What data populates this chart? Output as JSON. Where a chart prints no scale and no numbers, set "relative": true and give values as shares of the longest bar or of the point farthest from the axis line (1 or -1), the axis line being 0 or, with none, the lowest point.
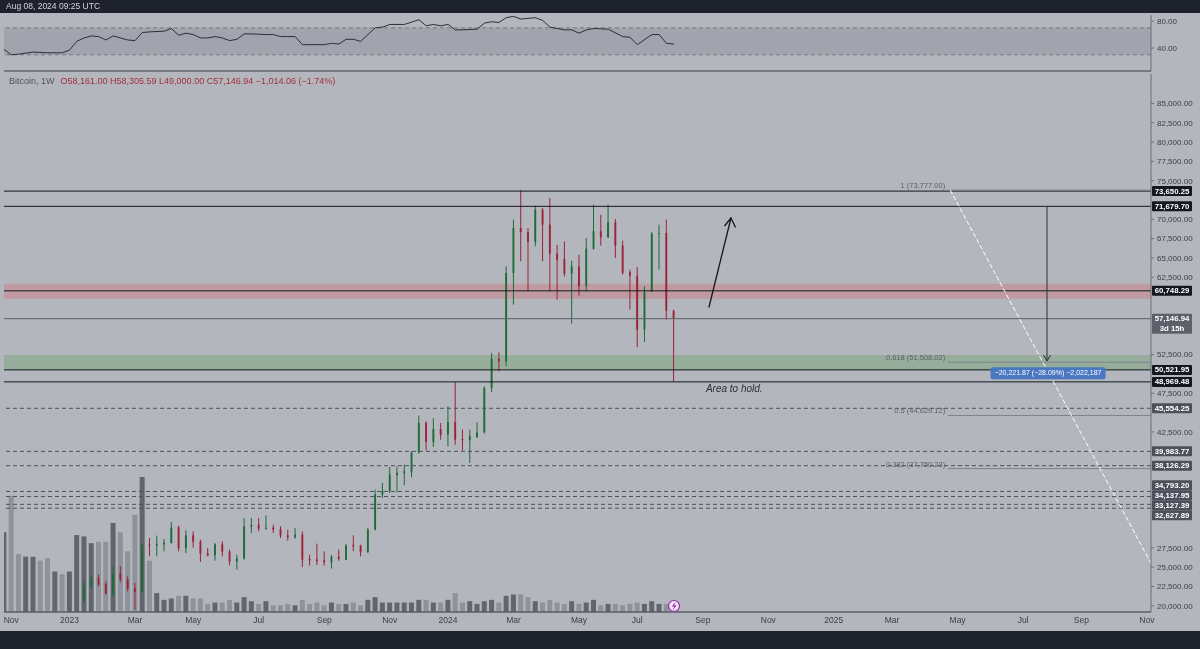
{
  "chart_data": [
    {
      "type": "line",
      "x": [
        "2022-10-31",
        "2022-11-07",
        "2022-11-14",
        "2022-11-28",
        "2022-12-12",
        "2022-12-26",
        "2023-01-02",
        "2023-01-09",
        "2023-01-16",
        "2023-01-23",
        "2023-01-30",
        "2023-02-06",
        "2023-02-13",
        "2023-02-20",
        "2023-02-27",
        "2023-03-06",
        "2023-03-13",
        "2023-03-20",
        "2023-04-03",
        "2023-04-10",
        "2023-04-17",
        "2023-04-24",
        "2023-05-01",
        "2023-05-08",
        "2023-05-15",
        "2023-05-22",
        "2023-05-29",
        "2023-06-05",
        "2023-06-12",
        "2023-06-19",
        "2023-06-26",
        "2023-07-10",
        "2023-07-17",
        "2023-07-24",
        "2023-07-31",
        "2023-08-07",
        "2023-08-14",
        "2023-08-21",
        "2023-09-04",
        "2023-09-11",
        "2023-09-18",
        "2023-09-25",
        "2023-10-02",
        "2023-10-09",
        "2023-10-23",
        "2023-10-30",
        "2023-11-06",
        "2023-11-20",
        "2023-12-04",
        "2023-12-11",
        "2023-12-18",
        "2023-12-25",
        "2024-01-01",
        "2024-01-08",
        "2024-01-15",
        "2024-01-29",
        "2024-02-05",
        "2024-02-12",
        "2024-02-19",
        "2024-02-26",
        "2024-03-04",
        "2024-03-11",
        "2024-03-25",
        "2024-04-01",
        "2024-04-08",
        "2024-04-22",
        "2024-04-29",
        "2024-05-06",
        "2024-05-13",
        "2024-05-20",
        "2024-06-03",
        "2024-06-17",
        "2024-06-24",
        "2024-07-01",
        "2024-07-15",
        "2024-07-22",
        "2024-07-29",
        "2024-08-05"
      ],
      "values": [
        38,
        30,
        31,
        34,
        33,
        33,
        37,
        50,
        55,
        58,
        57,
        52,
        58,
        55,
        52,
        51,
        63,
        64,
        65,
        69,
        59,
        62,
        60,
        55,
        55,
        57,
        55,
        51,
        53,
        61,
        61,
        60,
        60,
        57,
        57,
        57,
        45,
        45,
        45,
        47,
        46,
        53,
        53,
        50,
        70,
        71,
        75,
        75,
        82,
        73,
        75,
        73,
        75,
        67,
        67,
        68,
        77,
        79,
        78,
        85,
        87,
        83,
        85,
        81,
        71,
        67,
        67,
        62,
        67,
        69,
        68,
        57,
        56,
        45,
        60,
        60,
        47,
        46
      ],
      "color": "#2b2f3a",
      "xlim": [
        "2022-10-31",
        "2025-11-07"
      ],
      "ylim": [
        6,
        89
      ],
      "yticks": [
        {
          "value": 80,
          "label": "80.00"
        },
        {
          "value": 40,
          "label": "40.00"
        }
      ],
      "bands": [
        {
          "axis": "y",
          "from": 30,
          "to": 70,
          "color": "#9a9da6"
        }
      ],
      "ref_lines": [
        {
          "axis": "y",
          "value": 70,
          "color": "#767983",
          "line_style": "dashed"
        },
        {
          "axis": "y",
          "value": 30,
          "color": "#767983",
          "line_style": "dashed"
        }
      ],
      "tick_labels": "y",
      "annotations": [
        "Aug 08, 2024 09:25 UTC"
      ]
    },
    {
      "type": "candlestick",
      "title": "Bitcoin, 1W",
      "subtitle": "O58,161.00 H58,305.59 L49,000.00 C57,146.94 −1,014.06 (−1.74%)",
      "x": [
        "2023-01-16",
        "2023-01-23",
        "2023-01-30",
        "2023-02-06",
        "2023-02-13",
        "2023-02-20",
        "2023-02-27",
        "2023-03-06",
        "2023-03-13",
        "2023-03-20",
        "2023-03-27",
        "2023-04-03",
        "2023-04-10",
        "2023-04-17",
        "2023-04-24",
        "2023-05-01",
        "2023-05-08",
        "2023-05-15",
        "2023-05-22",
        "2023-05-29",
        "2023-06-05",
        "2023-06-12",
        "2023-06-19",
        "2023-06-26",
        "2023-07-03",
        "2023-07-10",
        "2023-07-17",
        "2023-07-24",
        "2023-07-31",
        "2023-08-07",
        "2023-08-14",
        "2023-08-21",
        "2023-08-28",
        "2023-09-04",
        "2023-09-11",
        "2023-09-18",
        "2023-09-25",
        "2023-10-02",
        "2023-10-09",
        "2023-10-16",
        "2023-10-23",
        "2023-10-30",
        "2023-11-06",
        "2023-11-13",
        "2023-11-20",
        "2023-11-27",
        "2023-12-04",
        "2023-12-11",
        "2023-12-18",
        "2023-12-25",
        "2024-01-01",
        "2024-01-08",
        "2024-01-15",
        "2024-01-22",
        "2024-01-29",
        "2024-02-05",
        "2024-02-12",
        "2024-02-19",
        "2024-02-26",
        "2024-03-04",
        "2024-03-11",
        "2024-03-18",
        "2024-03-25",
        "2024-04-01",
        "2024-04-08",
        "2024-04-15",
        "2024-04-22",
        "2024-04-29",
        "2024-05-06",
        "2024-05-13",
        "2024-05-20",
        "2024-05-27",
        "2024-06-03",
        "2024-06-10",
        "2024-06-17",
        "2024-06-24",
        "2024-07-01",
        "2024-07-08",
        "2024-07-15",
        "2024-07-22",
        "2024-07-29",
        "2024-08-05"
      ],
      "ohlc": [
        [
          20670,
          23170,
          20370,
          22610
        ],
        [
          22520,
          23900,
          22310,
          23600
        ],
        [
          23600,
          24030,
          22520,
          22740
        ],
        [
          22820,
          23170,
          21440,
          21570
        ],
        [
          21570,
          25110,
          21230,
          24070
        ],
        [
          24120,
          25110,
          23040,
          23380
        ],
        [
          23380,
          23810,
          21870,
          22220
        ],
        [
          22310,
          22950,
          19500,
          21790
        ],
        [
          21790,
          28000,
          21660,
          27820
        ],
        [
          27910,
          28770,
          26400,
          27780
        ],
        [
          27820,
          29080,
          26400,
          28040
        ],
        [
          27950,
          28640,
          27050,
          28170
        ],
        [
          28130,
          30840,
          28040,
          30110
        ],
        [
          30150,
          30370,
          27050,
          27440
        ],
        [
          27440,
          29770,
          26830,
          29120
        ],
        [
          29120,
          29640,
          27520,
          28300
        ],
        [
          28300,
          28560,
          25670,
          26750
        ],
        [
          26790,
          27480,
          26400,
          26530
        ],
        [
          26530,
          28130,
          25840,
          27950
        ],
        [
          27950,
          28340,
          26400,
          27010
        ],
        [
          27010,
          27260,
          25240,
          25710
        ],
        [
          25710,
          26620,
          24680,
          26140
        ],
        [
          26100,
          31360,
          25970,
          30280
        ],
        [
          30240,
          31360,
          29420,
          30460
        ],
        [
          30500,
          31360,
          29640,
          29980
        ],
        [
          29980,
          31710,
          29850,
          30110
        ],
        [
          30110,
          30500,
          29420,
          29850
        ],
        [
          29940,
          30280,
          28770,
          29080
        ],
        [
          29120,
          29850,
          28430,
          28860
        ],
        [
          28860,
          30070,
          28690,
          29210
        ],
        [
          29210,
          29640,
          25020,
          25970
        ],
        [
          26060,
          26620,
          25200,
          25890
        ],
        [
          26010,
          28040,
          25280,
          25760
        ],
        [
          25890,
          27050,
          25200,
          25630
        ],
        [
          25630,
          26580,
          24810,
          26360
        ],
        [
          26360,
          27270,
          25840,
          26060
        ],
        [
          25970,
          28000,
          25890,
          27780
        ],
        [
          27870,
          29120,
          27050,
          27700
        ],
        [
          27780,
          27910,
          26400,
          26960
        ],
        [
          26960,
          30070,
          26830,
          29850
        ],
        [
          29850,
          35030,
          29770,
          34420
        ],
        [
          34380,
          35890,
          33950,
          34900
        ],
        [
          34850,
          37960,
          34600,
          36970
        ],
        [
          36920,
          38050,
          34680,
          37230
        ],
        [
          37140,
          38260,
          35590,
          37400
        ],
        [
          37270,
          39990,
          36620,
          39860
        ],
        [
          39860,
          44600,
          39680,
          43650
        ],
        [
          43650,
          43870,
          40110,
          41190
        ],
        [
          41190,
          44300,
          40550,
          42870
        ],
        [
          42870,
          43650,
          41490,
          42140
        ],
        [
          42140,
          45810,
          40630,
          43780
        ],
        [
          43780,
          48970,
          40850,
          41490
        ],
        [
          41580,
          42790,
          40110,
          41410
        ],
        [
          41410,
          42790,
          38480,
          41930
        ],
        [
          41840,
          43740,
          41710,
          42440
        ],
        [
          42440,
          48390,
          42270,
          48180
        ],
        [
          48180,
          52710,
          47660,
          51970
        ],
        [
          51970,
          52790,
          50340,
          51630
        ],
        [
          51630,
          63920,
          50980,
          63060
        ],
        [
          63060,
          69960,
          58960,
          68880
        ],
        [
          68880,
          73780,
          64570,
          68360
        ],
        [
          68360,
          68880,
          60680,
          67070
        ],
        [
          67070,
          71770,
          66510,
          71250
        ],
        [
          71250,
          71460,
          64570,
          69310
        ],
        [
          69310,
          72760,
          60680,
          65560
        ],
        [
          65560,
          66720,
          59610,
          64780
        ],
        [
          64870,
          67150,
          62620,
          62970
        ],
        [
          62970,
          64650,
          56500,
          63920
        ],
        [
          63920,
          65430,
          60120,
          61330
        ],
        [
          61330,
          67580,
          60680,
          66200
        ],
        [
          66200,
          71900,
          66070,
          68450
        ],
        [
          68450,
          70600,
          66590,
          67670
        ],
        [
          67670,
          71900,
          67580,
          69610
        ],
        [
          69610,
          70040,
          65000,
          66590
        ],
        [
          66590,
          67240,
          62840,
          63060
        ],
        [
          63140,
          63490,
          58310,
          62710
        ],
        [
          62710,
          63830,
          53440,
          55730
        ],
        [
          55730,
          61330,
          54130,
          60640
        ],
        [
          60640,
          68360,
          60640,
          68140
        ],
        [
          68100,
          69310,
          63490,
          68230
        ],
        [
          68230,
          69960,
          57020,
          58161
        ],
        [
          58161,
          58305.59,
          49000,
          57146.94
        ]
      ],
      "colors": [
        "#1f6b35",
        "#1f6b35",
        "#9b2335",
        "#9b2335",
        "#1f6b35",
        "#9b2335",
        "#9b2335",
        "#9b2335",
        "#1f6b35",
        "#9b2335",
        "#1f6b35",
        "#1f6b35",
        "#1f6b35",
        "#9b2335",
        "#1f6b35",
        "#9b2335",
        "#9b2335",
        "#9b2335",
        "#1f6b35",
        "#9b2335",
        "#9b2335",
        "#1f6b35",
        "#1f6b35",
        "#1f6b35",
        "#9b2335",
        "#1f6b35",
        "#9b2335",
        "#9b2335",
        "#9b2335",
        "#1f6b35",
        "#9b2335",
        "#9b2335",
        "#9b2335",
        "#9b2335",
        "#1f6b35",
        "#9b2335",
        "#1f6b35",
        "#9b2335",
        "#9b2335",
        "#1f6b35",
        "#1f6b35",
        "#1f6b35",
        "#1f6b35",
        "#1f6b35",
        "#1f6b35",
        "#1f6b35",
        "#1f6b35",
        "#9b2335",
        "#1f6b35",
        "#9b2335",
        "#1f6b35",
        "#9b2335",
        "#9b2335",
        "#1f6b35",
        "#1f6b35",
        "#1f6b35",
        "#1f6b35",
        "#9b2335",
        "#1f6b35",
        "#1f6b35",
        "#9b2335",
        "#9b2335",
        "#1f6b35",
        "#9b2335",
        "#9b2335",
        "#9b2335",
        "#9b2335",
        "#1f6b35",
        "#9b2335",
        "#1f6b35",
        "#1f6b35",
        "#9b2335",
        "#1f6b35",
        "#9b2335",
        "#9b2335",
        "#9b2335",
        "#9b2335",
        "#1f6b35",
        "#1f6b35",
        "#1f6b35",
        "#9b2335",
        "#9b2335"
      ],
      "xlim": [
        "2022-10-31",
        "2025-11-07"
      ],
      "xticks": [
        {
          "value": "2022-11-07",
          "label": "Nov"
        },
        {
          "value": "2023-01-02",
          "label": "2023"
        },
        {
          "value": "2023-03-06",
          "label": "Mar"
        },
        {
          "value": "2023-05-01",
          "label": "May"
        },
        {
          "value": "2023-07-03",
          "label": "Jul"
        },
        {
          "value": "2023-09-04",
          "label": "Sep"
        },
        {
          "value": "2023-11-06",
          "label": "Nov"
        },
        {
          "value": "2024-01-01",
          "label": "2024"
        },
        {
          "value": "2024-03-04",
          "label": "Mar"
        },
        {
          "value": "2024-05-06",
          "label": "May"
        },
        {
          "value": "2024-07-01",
          "label": "Jul"
        },
        {
          "value": "2024-09-02",
          "label": "Sep"
        },
        {
          "value": "2024-11-04",
          "label": "Nov"
        },
        {
          "value": "2025-01-06",
          "label": "2025"
        },
        {
          "value": "2025-03-03",
          "label": "Mar"
        },
        {
          "value": "2025-05-05",
          "label": "May"
        },
        {
          "value": "2025-07-07",
          "label": "Jul"
        },
        {
          "value": "2025-09-01",
          "label": "Sep"
        },
        {
          "value": "2025-11-03",
          "label": "Nov"
        }
      ],
      "ylim": [
        19200,
        88800
      ],
      "yticks": [
        {
          "value": 20000,
          "label": "20,000.00"
        },
        {
          "value": 22500,
          "label": "22,500.00"
        },
        {
          "value": 25000,
          "label": "25,000.00"
        },
        {
          "value": 27500,
          "label": "27,500.00"
        },
        {
          "value": 42500,
          "label": "42,500.00"
        },
        {
          "value": 47500,
          "label": "47,500.00"
        },
        {
          "value": 52500,
          "label": "52,500.00"
        },
        {
          "value": 62500,
          "label": "62,500.00"
        },
        {
          "value": 65000,
          "label": "65,000.00"
        },
        {
          "value": 67500,
          "label": "67,500.00"
        },
        {
          "value": 70000,
          "label": "70,000.00"
        },
        {
          "value": 75000,
          "label": "75,000.00"
        },
        {
          "value": 77500,
          "label": "77,500.00"
        },
        {
          "value": 80000,
          "label": "80,000.00"
        },
        {
          "value": 82500,
          "label": "82,500.00"
        },
        {
          "value": 85000,
          "label": "85,000.00"
        }
      ],
      "bands": [
        {
          "axis": "y",
          "from": 50521.95,
          "to": 52450,
          "color": "#8baa8f"
        },
        {
          "axis": "y",
          "from": 59735,
          "to": 61675,
          "color": "#c68e96"
        }
      ],
      "ref_lines": [
        {
          "axis": "y",
          "value": 73650.25,
          "label": "73,650.25",
          "color": "#131722",
          "line_style": "solid"
        },
        {
          "axis": "y",
          "value": 71679.7,
          "label": "71,679.70",
          "color": "#131722",
          "line_style": "solid"
        },
        {
          "axis": "y",
          "value": 60748.29,
          "label": "60,748.29",
          "color": "#131722",
          "line_style": "solid"
        },
        {
          "axis": "y",
          "value": 57146.94,
          "label": "57,146.94\n3d 15h",
          "color": "#5d606b",
          "line_style": "solid"
        },
        {
          "axis": "y",
          "value": 50521.95,
          "label": "50,521.95",
          "color": "#131722",
          "line_style": "solid"
        },
        {
          "axis": "y",
          "value": 48969.48,
          "label": "48,969.48",
          "color": "#131722",
          "line_style": "solid"
        },
        {
          "axis": "y",
          "value": 45554.25,
          "label": "45,554.25",
          "color": "#4c505b",
          "line_style": "dashed"
        },
        {
          "axis": "y",
          "value": 39983.77,
          "label": "39,983.77",
          "color": "#4c505b",
          "line_style": "dashed"
        },
        {
          "axis": "y",
          "value": 38126.29,
          "label": "38,126.29",
          "color": "#4c505b",
          "line_style": "dashed"
        },
        {
          "axis": "y",
          "value": 34793.2,
          "label": "34,793.20",
          "color": "#4c505b",
          "line_style": "dashed"
        },
        {
          "axis": "y",
          "value": 34137.95,
          "label": "34,137.95",
          "color": "#4c505b",
          "line_style": "dashed"
        },
        {
          "axis": "y",
          "value": 33127.39,
          "label": "33,127.39",
          "color": "#4c505b",
          "line_style": "dashed"
        },
        {
          "axis": "y",
          "value": 32627.89,
          "label": "32,627.89",
          "color": "#4c505b",
          "line_style": "dashed"
        }
      ],
      "series": [
        {
          "type": "line",
          "name": "1 (73,777.00)",
          "x": [
            "2025-04-26",
            "2025-11-07"
          ],
          "values": [
            73777,
            73777
          ],
          "color": "#7e818b"
        },
        {
          "type": "line",
          "name": "0.618 (51,508.02)",
          "x": [
            "2025-04-26",
            "2025-11-07"
          ],
          "values": [
            51508.02,
            51508.02
          ],
          "color": "#7e818b"
        },
        {
          "type": "line",
          "name": "0.5 (44,629.12)",
          "x": [
            "2025-04-26",
            "2025-11-07"
          ],
          "values": [
            44629.12,
            44629.12
          ],
          "color": "#7e818b"
        },
        {
          "type": "line",
          "name": "0.382 (37,750.23)",
          "x": [
            "2025-04-26",
            "2025-11-07"
          ],
          "values": [
            37750.23,
            37750.23
          ],
          "color": "#7e818b"
        },
        {
          "type": "line",
          "x": [
            "2025-04-28",
            "2025-11-07"
          ],
          "values": [
            73777,
            25500
          ],
          "color": "#ffffff",
          "line_style": "dashed"
        }
      ],
      "annotations": [
        {
          "text": "Area to hold.",
          "x": "2024-09-05",
          "y": 48969.48
        },
        {
          "text": "−20,221.87 (−28.09%) −2,022,187",
          "x": "2025-07-31",
          "y": 50100
        }
      ]
    },
    {
      "type": "bar",
      "x": [
        "2022-10-31",
        "2022-11-07",
        "2022-11-14",
        "2022-11-21",
        "2022-11-28",
        "2022-12-05",
        "2022-12-12",
        "2022-12-19",
        "2022-12-26",
        "2023-01-02",
        "2023-01-09",
        "2023-01-16",
        "2023-01-23",
        "2023-01-30",
        "2023-02-06",
        "2023-02-13",
        "2023-02-20",
        "2023-02-27",
        "2023-03-06",
        "2023-03-13",
        "2023-03-20",
        "2023-03-27",
        "2023-04-03",
        "2023-04-10",
        "2023-04-17",
        "2023-04-24",
        "2023-05-01",
        "2023-05-08",
        "2023-05-15",
        "2023-05-22",
        "2023-05-29",
        "2023-06-05",
        "2023-06-12",
        "2023-06-19",
        "2023-06-26",
        "2023-07-03",
        "2023-07-10",
        "2023-07-17",
        "2023-07-24",
        "2023-07-31",
        "2023-08-07",
        "2023-08-14",
        "2023-08-21",
        "2023-08-28",
        "2023-09-04",
        "2023-09-11",
        "2023-09-18",
        "2023-09-25",
        "2023-10-02",
        "2023-10-09",
        "2023-10-16",
        "2023-10-23",
        "2023-10-30",
        "2023-11-06",
        "2023-11-13",
        "2023-11-20",
        "2023-11-27",
        "2023-12-04",
        "2023-12-11",
        "2023-12-18",
        "2023-12-25",
        "2024-01-01",
        "2024-01-08",
        "2024-01-15",
        "2024-01-22",
        "2024-01-29",
        "2024-02-05",
        "2024-02-12",
        "2024-02-19",
        "2024-02-26",
        "2024-03-04",
        "2024-03-11",
        "2024-03-18",
        "2024-03-25",
        "2024-04-01",
        "2024-04-08",
        "2024-04-15",
        "2024-04-22",
        "2024-04-29",
        "2024-05-06",
        "2024-05-13",
        "2024-05-20",
        "2024-05-27",
        "2024-06-03",
        "2024-06-10",
        "2024-06-17",
        "2024-06-24",
        "2024-07-01",
        "2024-07-08",
        "2024-07-15",
        "2024-07-22",
        "2024-07-29"
      ],
      "values": [
        0.59,
        0.86,
        0.43,
        0.41,
        0.41,
        0.38,
        0.4,
        0.3,
        0.28,
        0.3,
        0.57,
        0.56,
        0.51,
        0.52,
        0.52,
        0.66,
        0.59,
        0.45,
        0.72,
        1,
        0.38,
        0.14,
        0.09,
        0.1,
        0.12,
        0.12,
        0.1,
        0.1,
        0.06,
        0.07,
        0.07,
        0.09,
        0.07,
        0.11,
        0.08,
        0.06,
        0.08,
        0.05,
        0.05,
        0.06,
        0.05,
        0.09,
        0.06,
        0.07,
        0.05,
        0.07,
        0.06,
        0.06,
        0.07,
        0.05,
        0.09,
        0.11,
        0.07,
        0.07,
        0.07,
        0.07,
        0.07,
        0.09,
        0.09,
        0.07,
        0.07,
        0.09,
        0.14,
        0.07,
        0.08,
        0.06,
        0.08,
        0.09,
        0.07,
        0.12,
        0.13,
        0.13,
        0.11,
        0.08,
        0.07,
        0.09,
        0.07,
        0.06,
        0.08,
        0.06,
        0.07,
        0.09,
        0.05,
        0.06,
        0.06,
        0.05,
        0.06,
        0.07,
        0.06,
        0.08,
        0.06,
        0.06
      ],
      "colors": [
        "#62656d",
        "#8f929a",
        "#8f929a",
        "#62656d",
        "#62656d",
        "#8f929a",
        "#8f929a",
        "#62656d",
        "#8f929a",
        "#62656d",
        "#62656d",
        "#62656d",
        "#62656d",
        "#8f929a",
        "#8f929a",
        "#62656d",
        "#8f929a",
        "#8f929a",
        "#8f929a",
        "#62656d",
        "#8f929a",
        "#62656d",
        "#62656d",
        "#62656d",
        "#8f929a",
        "#62656d",
        "#8f929a",
        "#8f929a",
        "#8f929a",
        "#62656d",
        "#8f929a",
        "#8f929a",
        "#62656d",
        "#62656d",
        "#62656d",
        "#8f929a",
        "#62656d",
        "#8f929a",
        "#8f929a",
        "#8f929a",
        "#62656d",
        "#8f929a",
        "#8f929a",
        "#8f929a",
        "#8f929a",
        "#62656d",
        "#8f929a",
        "#62656d",
        "#8f929a",
        "#8f929a",
        "#62656d",
        "#62656d",
        "#62656d",
        "#62656d",
        "#62656d",
        "#62656d",
        "#62656d",
        "#62656d",
        "#8f929a",
        "#62656d",
        "#8f929a",
        "#62656d",
        "#8f929a",
        "#8f929a",
        "#62656d",
        "#62656d",
        "#62656d",
        "#62656d",
        "#8f929a",
        "#62656d",
        "#62656d",
        "#8f929a",
        "#8f929a",
        "#62656d",
        "#8f929a",
        "#8f929a",
        "#8f929a",
        "#8f929a",
        "#62656d",
        "#8f929a",
        "#62656d",
        "#62656d",
        "#8f929a",
        "#62656d",
        "#8f929a",
        "#8f929a",
        "#8f929a",
        "#8f929a",
        "#62656d",
        "#62656d",
        "#62656d",
        "#8f929a"
      ],
      "relative": true,
      "xlim": [
        "2022-10-31",
        "2025-11-07"
      ],
      "tick_labels": false
    }
  ]
}
